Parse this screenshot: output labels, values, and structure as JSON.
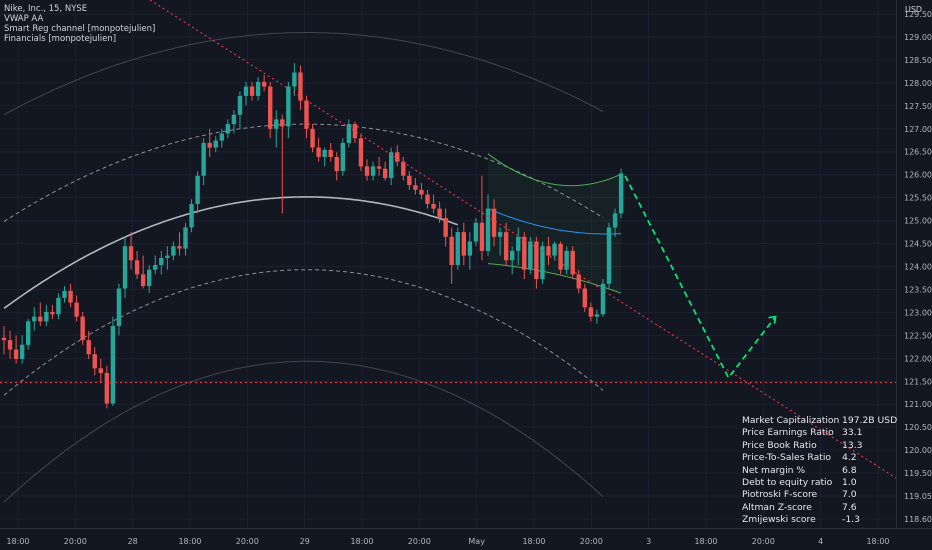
{
  "header": {
    "symbol_line": "Nike, Inc., 15, NYSE",
    "indicators": [
      "VWAP AA",
      "Smart Reg channel [monpotejulien]",
      "Financials [monpotejulien]"
    ]
  },
  "price_axis": {
    "currency": "USD",
    "ticks": [
      "129.50",
      "129.00",
      "128.50",
      "128.00",
      "127.50",
      "127.00",
      "126.50",
      "126.00",
      "125.50",
      "125.00",
      "124.50",
      "124.00",
      "123.50",
      "123.00",
      "122.50",
      "122.00",
      "121.50",
      "121.00",
      "120.50",
      "120.00",
      "119.50",
      "119.05",
      "118.60"
    ]
  },
  "time_axis": {
    "ticks": [
      "18:00",
      "20:00",
      "28",
      "18:00",
      "20:00",
      "29",
      "18:00",
      "20:00",
      "May",
      "18:00",
      "20:00",
      "3",
      "18:00",
      "20:00",
      "4",
      "18:00"
    ]
  },
  "financials": [
    {
      "label": "Market Capitalization",
      "value": "197.2B  USD"
    },
    {
      "label": "Price Earnings Ratio",
      "value": "33.1"
    },
    {
      "label": "Price Book Ratio",
      "value": "13.3"
    },
    {
      "label": "Price-To-Sales Ratio",
      "value": "4.2"
    },
    {
      "label": "Net margin %",
      "value": "6.8"
    },
    {
      "label": "Debt to equity ratio",
      "value": "1.0"
    },
    {
      "label": "Piotroski F-score",
      "value": "7.0"
    },
    {
      "label": "Altman Z-score",
      "value": "7.6"
    },
    {
      "label": "Zmijewski score",
      "value": "-1.3"
    }
  ],
  "colors": {
    "background": "#131722",
    "up": "#26a69a",
    "down": "#ef5350",
    "vwap": "#b2b5be",
    "trendline": "#f23645",
    "projection": "#00e676",
    "channel_mid": "#2196f3",
    "channel_band": "#4caf50"
  },
  "chart_data": {
    "type": "candlestick",
    "title": "Nike, Inc., 15, NYSE",
    "ylim": [
      118.5,
      129.7
    ],
    "support_level": 121.6,
    "candles": [
      {
        "o": 122.55,
        "h": 122.8,
        "l": 122.2,
        "c": 122.5
      },
      {
        "o": 122.5,
        "h": 122.7,
        "l": 122.1,
        "c": 122.3
      },
      {
        "o": 122.3,
        "h": 122.6,
        "l": 122.0,
        "c": 122.1
      },
      {
        "o": 122.1,
        "h": 122.6,
        "l": 122.0,
        "c": 122.4
      },
      {
        "o": 122.4,
        "h": 122.95,
        "l": 122.3,
        "c": 122.9
      },
      {
        "o": 122.9,
        "h": 123.2,
        "l": 122.7,
        "c": 123.0
      },
      {
        "o": 123.0,
        "h": 123.3,
        "l": 122.8,
        "c": 122.9
      },
      {
        "o": 122.9,
        "h": 123.25,
        "l": 122.8,
        "c": 123.1
      },
      {
        "o": 123.1,
        "h": 123.25,
        "l": 122.95,
        "c": 123.05
      },
      {
        "o": 123.05,
        "h": 123.5,
        "l": 122.95,
        "c": 123.4
      },
      {
        "o": 123.4,
        "h": 123.65,
        "l": 123.3,
        "c": 123.55
      },
      {
        "o": 123.55,
        "h": 123.7,
        "l": 123.2,
        "c": 123.3
      },
      {
        "o": 123.3,
        "h": 123.45,
        "l": 122.9,
        "c": 123.0
      },
      {
        "o": 123.0,
        "h": 123.1,
        "l": 122.4,
        "c": 122.5
      },
      {
        "o": 122.5,
        "h": 122.7,
        "l": 122.1,
        "c": 122.2
      },
      {
        "o": 122.2,
        "h": 122.35,
        "l": 121.75,
        "c": 121.9
      },
      {
        "o": 121.9,
        "h": 122.1,
        "l": 121.6,
        "c": 121.8
      },
      {
        "o": 121.8,
        "h": 121.95,
        "l": 121.05,
        "c": 121.15
      },
      {
        "o": 121.15,
        "h": 123.0,
        "l": 121.1,
        "c": 122.8
      },
      {
        "o": 122.8,
        "h": 123.7,
        "l": 122.6,
        "c": 123.6
      },
      {
        "o": 123.6,
        "h": 124.7,
        "l": 123.4,
        "c": 124.5
      },
      {
        "o": 124.5,
        "h": 124.8,
        "l": 124.0,
        "c": 124.2
      },
      {
        "o": 124.2,
        "h": 124.4,
        "l": 123.8,
        "c": 123.9
      },
      {
        "o": 123.9,
        "h": 124.3,
        "l": 123.6,
        "c": 123.65
      },
      {
        "o": 123.65,
        "h": 124.1,
        "l": 123.5,
        "c": 124.0
      },
      {
        "o": 124.0,
        "h": 124.3,
        "l": 123.9,
        "c": 124.1
      },
      {
        "o": 124.1,
        "h": 124.4,
        "l": 123.9,
        "c": 124.25
      },
      {
        "o": 124.25,
        "h": 124.5,
        "l": 124.0,
        "c": 124.3
      },
      {
        "o": 124.3,
        "h": 124.6,
        "l": 124.2,
        "c": 124.5
      },
      {
        "o": 124.5,
        "h": 124.8,
        "l": 124.3,
        "c": 124.45
      },
      {
        "o": 124.45,
        "h": 125.0,
        "l": 124.3,
        "c": 124.9
      },
      {
        "o": 124.9,
        "h": 125.5,
        "l": 124.8,
        "c": 125.4
      },
      {
        "o": 125.4,
        "h": 126.1,
        "l": 125.2,
        "c": 126.0
      },
      {
        "o": 126.0,
        "h": 126.8,
        "l": 125.8,
        "c": 126.7
      },
      {
        "o": 126.7,
        "h": 127.0,
        "l": 126.4,
        "c": 126.6
      },
      {
        "o": 126.6,
        "h": 126.85,
        "l": 126.5,
        "c": 126.75
      },
      {
        "o": 126.75,
        "h": 127.0,
        "l": 126.6,
        "c": 126.9
      },
      {
        "o": 126.9,
        "h": 127.2,
        "l": 126.8,
        "c": 127.1
      },
      {
        "o": 127.1,
        "h": 127.4,
        "l": 126.9,
        "c": 127.3
      },
      {
        "o": 127.3,
        "h": 127.8,
        "l": 127.0,
        "c": 127.7
      },
      {
        "o": 127.7,
        "h": 128.0,
        "l": 127.5,
        "c": 127.9
      },
      {
        "o": 127.9,
        "h": 128.0,
        "l": 127.6,
        "c": 127.7
      },
      {
        "o": 127.7,
        "h": 128.1,
        "l": 127.6,
        "c": 128.0
      },
      {
        "o": 128.0,
        "h": 128.15,
        "l": 127.8,
        "c": 127.9
      },
      {
        "o": 127.9,
        "h": 128.0,
        "l": 126.8,
        "c": 127.0
      },
      {
        "o": 127.0,
        "h": 127.4,
        "l": 126.6,
        "c": 127.2
      },
      {
        "o": 127.2,
        "h": 127.3,
        "l": 125.2,
        "c": 127.05
      },
      {
        "o": 127.05,
        "h": 128.0,
        "l": 126.8,
        "c": 127.9
      },
      {
        "o": 127.9,
        "h": 128.4,
        "l": 127.7,
        "c": 128.2
      },
      {
        "o": 128.2,
        "h": 128.35,
        "l": 127.4,
        "c": 127.6
      },
      {
        "o": 127.6,
        "h": 127.7,
        "l": 126.8,
        "c": 127.0
      },
      {
        "o": 127.0,
        "h": 127.1,
        "l": 126.5,
        "c": 126.6
      },
      {
        "o": 126.6,
        "h": 126.8,
        "l": 126.3,
        "c": 126.4
      },
      {
        "o": 126.4,
        "h": 126.6,
        "l": 126.2,
        "c": 126.55
      },
      {
        "o": 126.55,
        "h": 126.7,
        "l": 126.3,
        "c": 126.4
      },
      {
        "o": 126.4,
        "h": 126.5,
        "l": 125.9,
        "c": 126.1
      },
      {
        "o": 126.1,
        "h": 126.8,
        "l": 126.0,
        "c": 126.7
      },
      {
        "o": 126.7,
        "h": 127.2,
        "l": 126.6,
        "c": 127.1
      },
      {
        "o": 127.1,
        "h": 127.15,
        "l": 126.7,
        "c": 126.8
      },
      {
        "o": 126.8,
        "h": 126.9,
        "l": 126.1,
        "c": 126.2
      },
      {
        "o": 126.2,
        "h": 126.35,
        "l": 125.9,
        "c": 126.0
      },
      {
        "o": 126.0,
        "h": 126.3,
        "l": 125.9,
        "c": 126.2
      },
      {
        "o": 126.2,
        "h": 126.4,
        "l": 126.0,
        "c": 126.15
      },
      {
        "o": 126.15,
        "h": 126.3,
        "l": 125.9,
        "c": 125.95
      },
      {
        "o": 125.95,
        "h": 126.6,
        "l": 125.8,
        "c": 126.5
      },
      {
        "o": 126.5,
        "h": 126.65,
        "l": 126.2,
        "c": 126.3
      },
      {
        "o": 126.3,
        "h": 126.4,
        "l": 125.9,
        "c": 126.0
      },
      {
        "o": 126.0,
        "h": 126.1,
        "l": 125.7,
        "c": 125.8
      },
      {
        "o": 125.8,
        "h": 125.95,
        "l": 125.6,
        "c": 125.7
      },
      {
        "o": 125.7,
        "h": 125.85,
        "l": 125.5,
        "c": 125.6
      },
      {
        "o": 125.6,
        "h": 125.7,
        "l": 125.3,
        "c": 125.4
      },
      {
        "o": 125.4,
        "h": 125.6,
        "l": 125.2,
        "c": 125.3
      },
      {
        "o": 125.3,
        "h": 125.45,
        "l": 125.0,
        "c": 125.1
      },
      {
        "o": 125.1,
        "h": 125.3,
        "l": 124.5,
        "c": 124.7
      },
      {
        "o": 124.7,
        "h": 124.9,
        "l": 123.7,
        "c": 124.1
      },
      {
        "o": 124.1,
        "h": 124.9,
        "l": 124.0,
        "c": 124.8
      },
      {
        "o": 124.8,
        "h": 125.0,
        "l": 124.1,
        "c": 124.3
      },
      {
        "o": 124.3,
        "h": 124.8,
        "l": 124.0,
        "c": 124.6
      },
      {
        "o": 124.6,
        "h": 125.1,
        "l": 124.5,
        "c": 125.0
      },
      {
        "o": 125.0,
        "h": 126.0,
        "l": 124.2,
        "c": 124.4
      },
      {
        "o": 124.4,
        "h": 125.6,
        "l": 124.3,
        "c": 125.3
      },
      {
        "o": 125.3,
        "h": 125.5,
        "l": 124.5,
        "c": 124.7
      },
      {
        "o": 124.7,
        "h": 124.9,
        "l": 124.3,
        "c": 124.8
      },
      {
        "o": 124.8,
        "h": 125.0,
        "l": 124.1,
        "c": 124.2
      },
      {
        "o": 124.2,
        "h": 124.5,
        "l": 123.9,
        "c": 124.4
      },
      {
        "o": 124.4,
        "h": 124.9,
        "l": 124.1,
        "c": 124.7
      },
      {
        "o": 124.7,
        "h": 124.8,
        "l": 123.8,
        "c": 124.0
      },
      {
        "o": 124.0,
        "h": 124.7,
        "l": 123.9,
        "c": 124.6
      },
      {
        "o": 124.6,
        "h": 124.7,
        "l": 123.6,
        "c": 123.8
      },
      {
        "o": 123.8,
        "h": 124.6,
        "l": 123.7,
        "c": 124.5
      },
      {
        "o": 124.5,
        "h": 124.7,
        "l": 124.1,
        "c": 124.3
      },
      {
        "o": 124.3,
        "h": 124.6,
        "l": 124.2,
        "c": 124.55
      },
      {
        "o": 124.55,
        "h": 124.6,
        "l": 123.9,
        "c": 124.0
      },
      {
        "o": 124.0,
        "h": 124.5,
        "l": 123.9,
        "c": 124.4
      },
      {
        "o": 124.4,
        "h": 124.5,
        "l": 123.8,
        "c": 123.9
      },
      {
        "o": 123.9,
        "h": 124.0,
        "l": 123.5,
        "c": 123.6
      },
      {
        "o": 123.6,
        "h": 123.7,
        "l": 123.1,
        "c": 123.2
      },
      {
        "o": 123.2,
        "h": 123.3,
        "l": 122.9,
        "c": 123.0
      },
      {
        "o": 123.0,
        "h": 123.15,
        "l": 122.85,
        "c": 123.05
      },
      {
        "o": 123.05,
        "h": 123.8,
        "l": 123.0,
        "c": 123.7
      },
      {
        "o": 123.7,
        "h": 125.0,
        "l": 123.6,
        "c": 124.9
      },
      {
        "o": 124.9,
        "h": 125.3,
        "l": 124.7,
        "c": 125.2
      },
      {
        "o": 125.2,
        "h": 126.15,
        "l": 125.1,
        "c": 126.05
      }
    ],
    "projection_path": [
      [
        126.0,
        0
      ],
      [
        121.7,
        11
      ],
      [
        123.0,
        16
      ]
    ]
  }
}
